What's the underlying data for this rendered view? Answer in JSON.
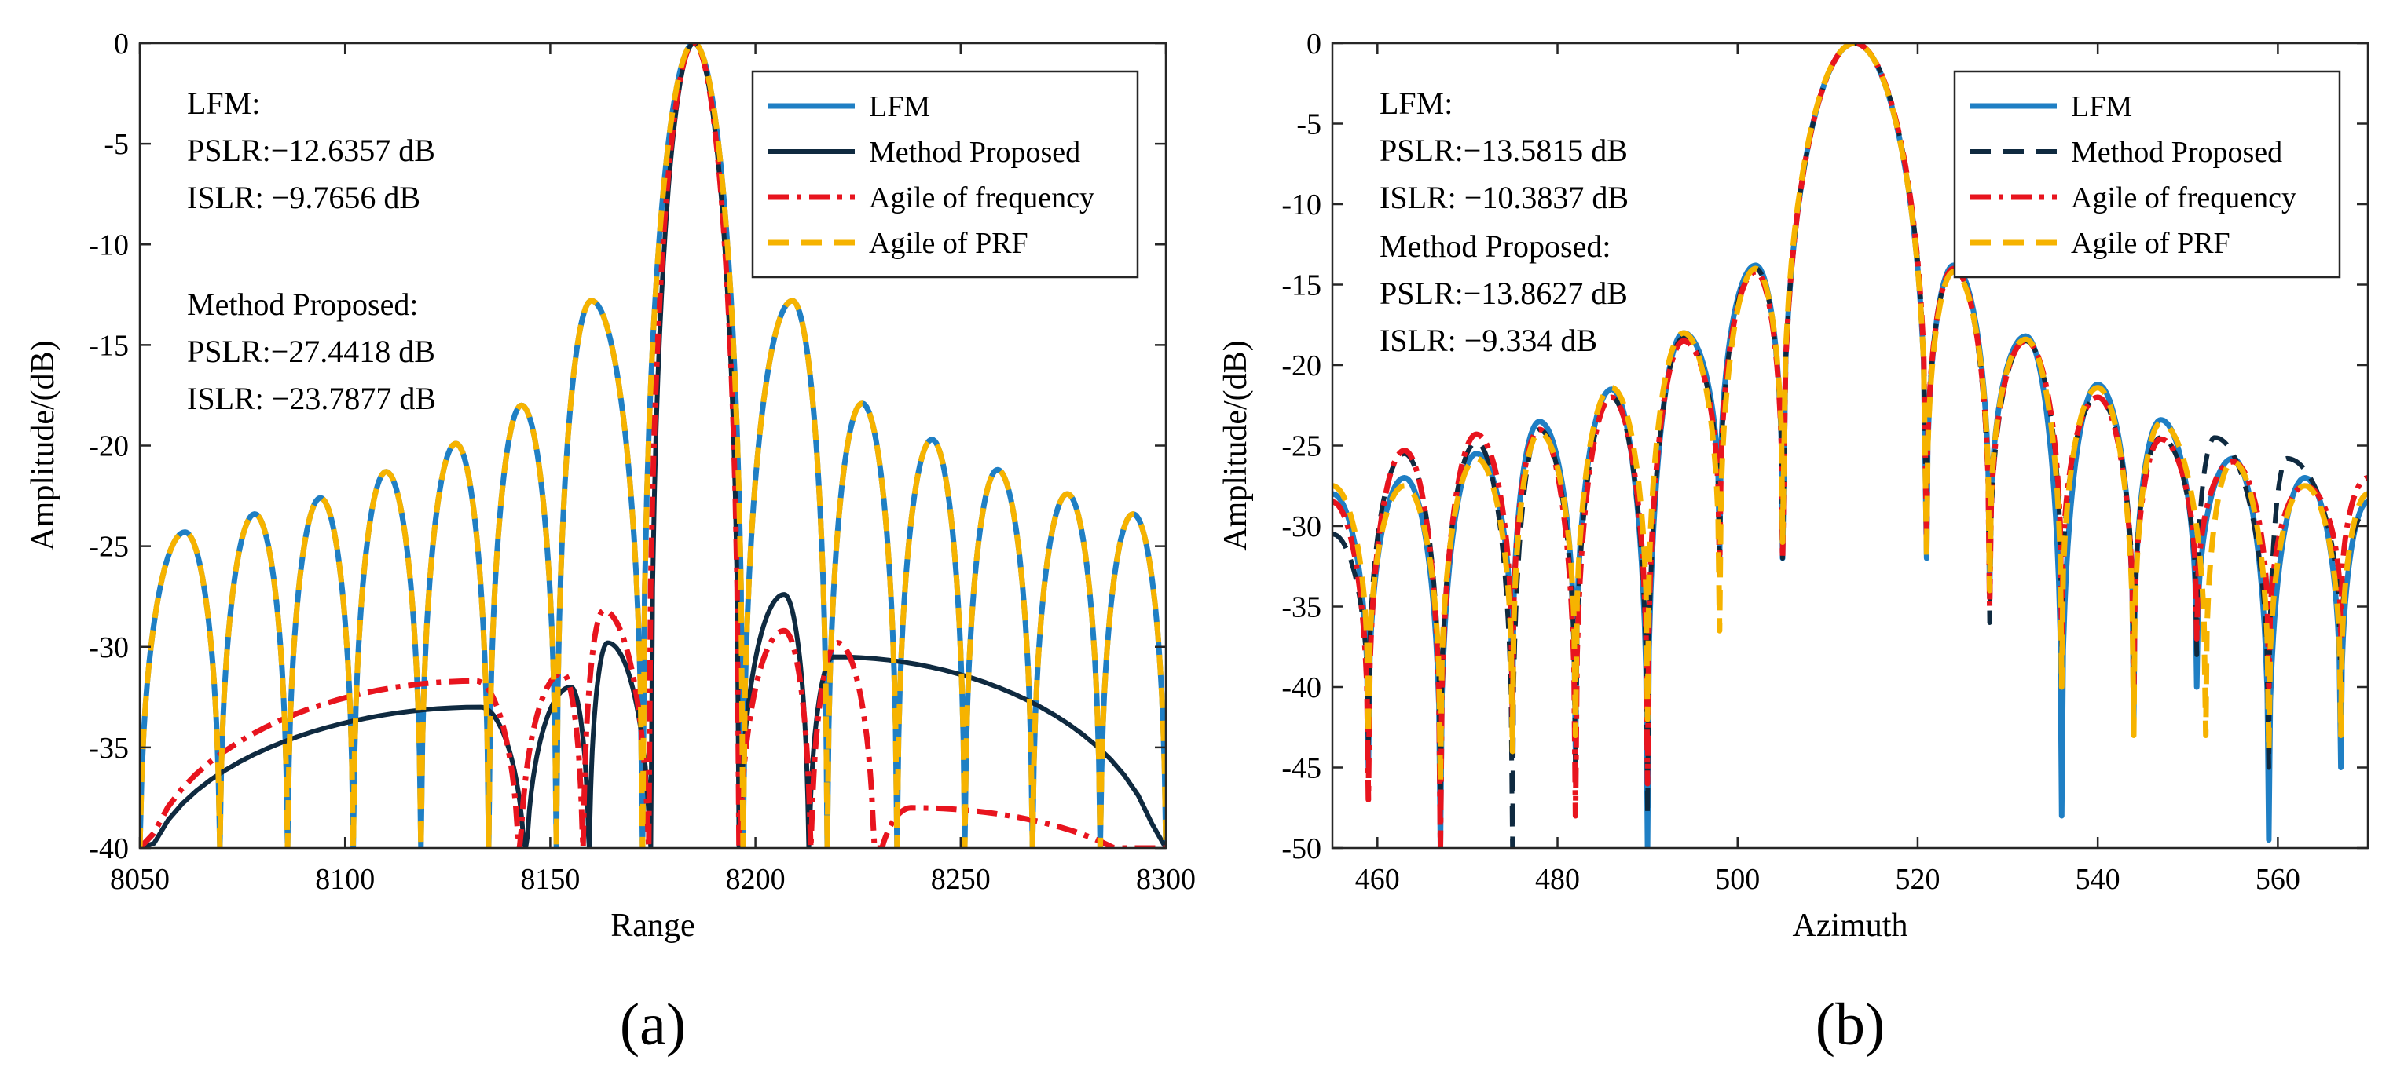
{
  "colors": {
    "lfm": "#1f7fc4",
    "method": "#0f2a40",
    "agile_frequency": "#e8141e",
    "agile_prf": "#f6b300",
    "annotation_lfm": "#3b3be6",
    "annotation_method": "#e8232a"
  },
  "chart_data": [
    {
      "type": "line",
      "panel_label": "(a)",
      "xlabel": "Range",
      "ylabel": "Amplitude/(dB)",
      "xlim": [
        8050,
        8300
      ],
      "ylim": [
        -40,
        0
      ],
      "xticks": [
        "8050",
        "8100",
        "8150",
        "8200",
        "8250",
        "8300"
      ],
      "yticks": [
        "0",
        "-5",
        "-10",
        "-15",
        "-20",
        "-25",
        "-30",
        "-35",
        "-40"
      ],
      "grid": false,
      "legend_position": "top-right",
      "legend": [
        "LFM",
        "Method Proposed",
        "Agile of frequency",
        "Agile of PRF"
      ],
      "annotations": {
        "lfm": [
          "LFM:",
          "PSLR:−12.6357 dB",
          "ISLR:  −9.7656 dB"
        ],
        "method": [
          "Method Proposed:",
          "PSLR:−27.4418 dB",
          "ISLR:  −23.7877 dB"
        ]
      },
      "series": [
        {
          "name": "LFM",
          "style": "solid",
          "peaks": [
            {
              "x": 8061,
              "y": -24.3
            },
            {
              "x": 8078,
              "y": -23.4
            },
            {
              "x": 8094,
              "y": -22.6
            },
            {
              "x": 8110,
              "y": -21.3
            },
            {
              "x": 8127,
              "y": -19.9
            },
            {
              "x": 8143,
              "y": -18.0
            },
            {
              "x": 8160,
              "y": -12.8
            },
            {
              "x": 8185,
              "y": 0
            },
            {
              "x": 8209,
              "y": -12.8
            },
            {
              "x": 8226,
              "y": -17.9
            },
            {
              "x": 8243,
              "y": -19.7
            },
            {
              "x": 8259,
              "y": -21.2
            },
            {
              "x": 8276,
              "y": -22.4
            },
            {
              "x": 8292,
              "y": -23.4
            }
          ]
        },
        {
          "name": "Method Proposed",
          "style": "solid",
          "peaks": [
            {
              "x": 8133,
              "y": -33.0
            },
            {
              "x": 8155,
              "y": -32.0
            },
            {
              "x": 8164,
              "y": -29.8
            },
            {
              "x": 8185,
              "y": 0
            },
            {
              "x": 8207,
              "y": -27.4
            },
            {
              "x": 8219,
              "y": -30.5
            }
          ]
        },
        {
          "name": "Agile of frequency",
          "style": "dashdot",
          "peaks": [
            {
              "x": 8132,
              "y": -31.7
            },
            {
              "x": 8153,
              "y": -31.3
            },
            {
              "x": 8163,
              "y": -28.2
            },
            {
              "x": 8185,
              "y": 0
            },
            {
              "x": 8207,
              "y": -29.2
            },
            {
              "x": 8220,
              "y": -29.8
            },
            {
              "x": 8238,
              "y": -38.0
            }
          ]
        },
        {
          "name": "Agile of PRF",
          "style": "dashed",
          "peaks": [
            {
              "x": 8061,
              "y": -24.3
            },
            {
              "x": 8078,
              "y": -23.4
            },
            {
              "x": 8094,
              "y": -22.6
            },
            {
              "x": 8110,
              "y": -21.3
            },
            {
              "x": 8127,
              "y": -19.9
            },
            {
              "x": 8143,
              "y": -18.0
            },
            {
              "x": 8160,
              "y": -12.8
            },
            {
              "x": 8185,
              "y": 0
            },
            {
              "x": 8209,
              "y": -12.8
            },
            {
              "x": 8226,
              "y": -17.9
            },
            {
              "x": 8243,
              "y": -19.7
            },
            {
              "x": 8259,
              "y": -21.2
            },
            {
              "x": 8276,
              "y": -22.4
            },
            {
              "x": 8292,
              "y": -23.4
            }
          ]
        }
      ]
    },
    {
      "type": "line",
      "panel_label": "(b)",
      "xlabel": "Azimuth",
      "ylabel": "Amplitude/(dB)",
      "xlim": [
        455,
        570
      ],
      "ylim": [
        -50,
        0
      ],
      "xticks": [
        "460",
        "480",
        "500",
        "520",
        "540",
        "560"
      ],
      "yticks": [
        "0",
        "-5",
        "-10",
        "-15",
        "-20",
        "-25",
        "-30",
        "-35",
        "-40",
        "-45",
        "-50"
      ],
      "grid": false,
      "legend_position": "top-right",
      "legend": [
        "LFM",
        "Method Proposed",
        "Agile of frequency",
        "Agile of PRF"
      ],
      "annotations": {
        "lfm": [
          "LFM:",
          "PSLR:−13.5815 dB",
          "ISLR:  −10.3837 dB"
        ],
        "method": [
          "Method Proposed:",
          "PSLR:−13.8627 dB",
          "ISLR:  −9.334 dB"
        ]
      },
      "series": [
        {
          "name": "LFM",
          "style": "solid",
          "peaks": [
            {
              "x": 455,
              "y": -28.0
            },
            {
              "x": 463,
              "y": -27.0
            },
            {
              "x": 471,
              "y": -25.5
            },
            {
              "x": 478,
              "y": -23.5
            },
            {
              "x": 486,
              "y": -21.5
            },
            {
              "x": 494,
              "y": -18.0
            },
            {
              "x": 502,
              "y": -13.8
            },
            {
              "x": 513,
              "y": 0
            },
            {
              "x": 524,
              "y": -13.8
            },
            {
              "x": 532,
              "y": -18.2
            },
            {
              "x": 540,
              "y": -21.2
            },
            {
              "x": 547,
              "y": -23.4
            },
            {
              "x": 555,
              "y": -25.8
            },
            {
              "x": 563,
              "y": -27.0
            },
            {
              "x": 570,
              "y": -28.5
            }
          ],
          "nulls": [
            {
              "x": 459,
              "y": -45
            },
            {
              "x": 467,
              "y": -50
            },
            {
              "x": 475,
              "y": -42
            },
            {
              "x": 482,
              "y": -44
            },
            {
              "x": 490,
              "y": -50
            },
            {
              "x": 498,
              "y": -32
            },
            {
              "x": 505,
              "y": -32
            },
            {
              "x": 521,
              "y": -32
            },
            {
              "x": 528,
              "y": -34
            },
            {
              "x": 536,
              "y": -48
            },
            {
              "x": 544,
              "y": -42
            },
            {
              "x": 551,
              "y": -40
            },
            {
              "x": 559,
              "y": -49.5
            },
            {
              "x": 567,
              "y": -45
            }
          ]
        },
        {
          "name": "Method Proposed",
          "style": "dashed",
          "peaks": [
            {
              "x": 455,
              "y": -30.5
            },
            {
              "x": 463,
              "y": -25.5
            },
            {
              "x": 471,
              "y": -24.8
            },
            {
              "x": 478,
              "y": -24.0
            },
            {
              "x": 486,
              "y": -22.0
            },
            {
              "x": 494,
              "y": -18.3
            },
            {
              "x": 502,
              "y": -14.0
            },
            {
              "x": 513,
              "y": 0
            },
            {
              "x": 524,
              "y": -14.0
            },
            {
              "x": 532,
              "y": -18.5
            },
            {
              "x": 540,
              "y": -22.0
            },
            {
              "x": 547,
              "y": -24.5
            },
            {
              "x": 553,
              "y": -24.5
            },
            {
              "x": 561,
              "y": -25.8
            },
            {
              "x": 570,
              "y": -29.0
            }
          ],
          "nulls": [
            {
              "x": 459,
              "y": -44
            },
            {
              "x": 467,
              "y": -48
            },
            {
              "x": 475,
              "y": -50
            },
            {
              "x": 482,
              "y": -46
            },
            {
              "x": 490,
              "y": -48
            },
            {
              "x": 498,
              "y": -33
            },
            {
              "x": 505,
              "y": -32
            },
            {
              "x": 521,
              "y": -31
            },
            {
              "x": 528,
              "y": -36
            },
            {
              "x": 536,
              "y": -38
            },
            {
              "x": 544,
              "y": -40
            },
            {
              "x": 551,
              "y": -38
            },
            {
              "x": 559,
              "y": -45
            },
            {
              "x": 567,
              "y": -40
            }
          ]
        },
        {
          "name": "Agile of frequency",
          "style": "dashdot",
          "peaks": [
            {
              "x": 455,
              "y": -28.5
            },
            {
              "x": 463,
              "y": -25.3
            },
            {
              "x": 471,
              "y": -24.3
            },
            {
              "x": 478,
              "y": -24.0
            },
            {
              "x": 486,
              "y": -22.0
            },
            {
              "x": 494,
              "y": -18.5
            },
            {
              "x": 502,
              "y": -14.2
            },
            {
              "x": 513,
              "y": 0
            },
            {
              "x": 524,
              "y": -14.0
            },
            {
              "x": 532,
              "y": -18.5
            },
            {
              "x": 540,
              "y": -22.0
            },
            {
              "x": 547,
              "y": -24.6
            },
            {
              "x": 555,
              "y": -26.0
            },
            {
              "x": 563,
              "y": -27.5
            },
            {
              "x": 570,
              "y": -27.0
            }
          ],
          "nulls": [
            {
              "x": 459,
              "y": -47
            },
            {
              "x": 467,
              "y": -50
            },
            {
              "x": 475,
              "y": -42
            },
            {
              "x": 482,
              "y": -48
            },
            {
              "x": 490,
              "y": -46
            },
            {
              "x": 498,
              "y": -33
            },
            {
              "x": 505,
              "y": -32
            },
            {
              "x": 521,
              "y": -31
            },
            {
              "x": 528,
              "y": -35
            },
            {
              "x": 536,
              "y": -37
            },
            {
              "x": 544,
              "y": -41
            },
            {
              "x": 551,
              "y": -37
            },
            {
              "x": 559,
              "y": -40
            },
            {
              "x": 567,
              "y": -37
            }
          ]
        },
        {
          "name": "Agile of PRF",
          "style": "dashed",
          "peaks": [
            {
              "x": 455,
              "y": -27.5
            },
            {
              "x": 463,
              "y": -27.5
            },
            {
              "x": 471,
              "y": -25.8
            },
            {
              "x": 478,
              "y": -24.2
            },
            {
              "x": 486,
              "y": -21.4
            },
            {
              "x": 494,
              "y": -18.0
            },
            {
              "x": 502,
              "y": -14.0
            },
            {
              "x": 513,
              "y": 0
            },
            {
              "x": 524,
              "y": -14.2
            },
            {
              "x": 532,
              "y": -18.4
            },
            {
              "x": 540,
              "y": -21.4
            },
            {
              "x": 547,
              "y": -23.6
            },
            {
              "x": 555,
              "y": -26.0
            },
            {
              "x": 563,
              "y": -27.5
            },
            {
              "x": 570,
              "y": -28.0
            }
          ],
          "nulls": [
            {
              "x": 459,
              "y": -43
            },
            {
              "x": 467,
              "y": -46
            },
            {
              "x": 475,
              "y": -44
            },
            {
              "x": 482,
              "y": -43
            },
            {
              "x": 490,
              "y": -42
            },
            {
              "x": 498,
              "y": -36.5
            },
            {
              "x": 505,
              "y": -31
            },
            {
              "x": 521,
              "y": -32
            },
            {
              "x": 528,
              "y": -34
            },
            {
              "x": 536,
              "y": -40
            },
            {
              "x": 544,
              "y": -43
            },
            {
              "x": 552,
              "y": -43
            },
            {
              "x": 559,
              "y": -44
            },
            {
              "x": 567,
              "y": -43
            }
          ]
        }
      ]
    }
  ]
}
